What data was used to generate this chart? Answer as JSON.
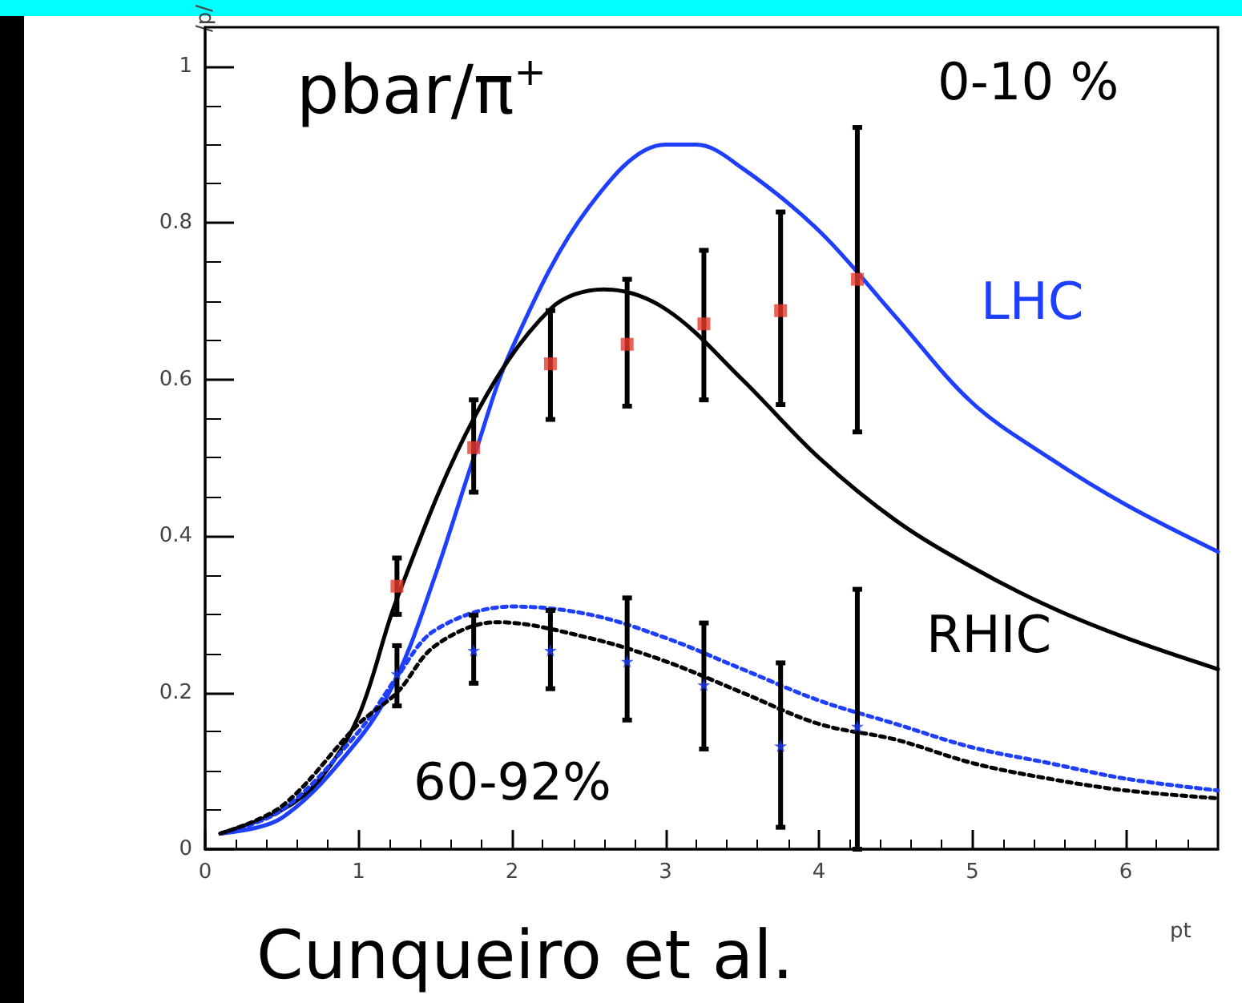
{
  "chart_data": {
    "type": "scatter",
    "title": "pbar/π$^{+}$",
    "xlabel": "pt",
    "ylabel": "/p/",
    "xlim": [
      0,
      6.6
    ],
    "ylim": [
      0,
      1.05
    ],
    "xticks": [
      0,
      1,
      2,
      3,
      4,
      5,
      6
    ],
    "yticks": [
      0,
      0.2,
      0.4,
      0.6,
      0.8,
      1
    ],
    "grid": false,
    "annotations": [
      "0-10 %",
      "LHC",
      "RHIC",
      "60-92%",
      "Cunqueiro et al."
    ],
    "series": [
      {
        "color": "#e8392c",
        "marker": "square",
        "x": [
          1.25,
          1.75,
          2.25,
          2.75,
          3.25,
          3.75,
          4.25
        ],
        "values": [
          0.336,
          0.513,
          0.62,
          0.645,
          0.671,
          0.688,
          0.728
        ],
        "errors": [
          [
            0.3,
            0.372
          ],
          [
            0.456,
            0.574
          ],
          [
            0.549,
            0.688
          ],
          [
            0.566,
            0.728
          ],
          [
            0.574,
            0.765
          ],
          [
            0.568,
            0.814
          ],
          [
            0.533,
            0.922
          ]
        ]
      },
      {
        "color": "#1a3cff",
        "marker": "star",
        "x": [
          1.25,
          1.75,
          2.25,
          2.75,
          3.25,
          3.75,
          4.25
        ],
        "values": [
          0.224,
          0.254,
          0.254,
          0.24,
          0.21,
          0.132,
          0.157
        ],
        "errors": [
          [
            0.183,
            0.26
          ],
          [
            0.212,
            0.299
          ],
          [
            0.205,
            0.305
          ],
          [
            0.165,
            0.321
          ],
          [
            0.128,
            0.289
          ],
          [
            0.028,
            0.238
          ],
          [
            0.0,
            0.332
          ]
        ]
      },
      {
        "type": "line",
        "color": "#1f3fff",
        "line_style": "solid",
        "marker": "none",
        "x": [
          0.1,
          0.5,
          1.0,
          1.25,
          1.5,
          1.75,
          2.0,
          2.5,
          3.0,
          3.2,
          3.5,
          4.0,
          4.5,
          5.0,
          5.5,
          6.0,
          6.6
        ],
        "values": [
          0.02,
          0.04,
          0.14,
          0.22,
          0.35,
          0.5,
          0.64,
          0.82,
          0.9,
          0.9,
          0.87,
          0.79,
          0.68,
          0.57,
          0.5,
          0.44,
          0.38
        ]
      },
      {
        "type": "line",
        "color": "#000000",
        "line_style": "solid",
        "marker": "none",
        "x": [
          0.1,
          0.5,
          0.75,
          1.0,
          1.25,
          1.75,
          2.25,
          2.6,
          3.0,
          3.5,
          4.0,
          4.5,
          5.0,
          5.5,
          6.0,
          6.6
        ],
        "values": [
          0.02,
          0.05,
          0.09,
          0.17,
          0.32,
          0.55,
          0.69,
          0.715,
          0.69,
          0.6,
          0.5,
          0.42,
          0.36,
          0.31,
          0.27,
          0.23
        ]
      },
      {
        "type": "line",
        "color": "#1f3fff",
        "line_style": "dotted",
        "marker": "none",
        "x": [
          0.1,
          0.5,
          1.0,
          1.25,
          1.5,
          2.0,
          2.5,
          3.0,
          3.5,
          4.0,
          4.5,
          5.0,
          5.5,
          6.0,
          6.6
        ],
        "values": [
          0.02,
          0.05,
          0.15,
          0.22,
          0.28,
          0.31,
          0.3,
          0.27,
          0.23,
          0.19,
          0.16,
          0.13,
          0.11,
          0.09,
          0.075
        ]
      },
      {
        "type": "line",
        "color": "#000000",
        "line_style": "dotted",
        "marker": "none",
        "x": [
          0.1,
          0.5,
          1.0,
          1.25,
          1.5,
          1.9,
          2.5,
          3.0,
          3.5,
          4.0,
          4.5,
          5.0,
          5.5,
          6.0,
          6.6
        ],
        "values": [
          0.02,
          0.055,
          0.16,
          0.2,
          0.26,
          0.29,
          0.27,
          0.24,
          0.2,
          0.16,
          0.14,
          0.11,
          0.09,
          0.075,
          0.065
        ]
      }
    ]
  }
}
